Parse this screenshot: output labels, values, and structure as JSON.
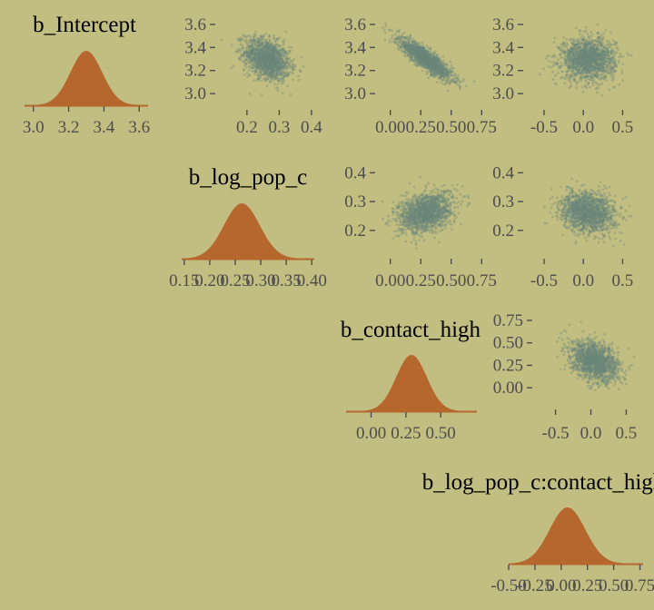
{
  "background": "#c2bd80",
  "colors": {
    "density_fill": "#b5672e",
    "scatter_point": "#6a877c",
    "tick": "#4d4d4d",
    "title": "#000000"
  },
  "chart_data": [
    {
      "type": "area",
      "title": "b_Intercept",
      "xlim": [
        2.95,
        3.65
      ],
      "ticks": [
        "3.0",
        "3.2",
        "3.4",
        "3.6"
      ],
      "tick_values": [
        3.0,
        3.2,
        3.4,
        3.6
      ],
      "mean": 3.3,
      "sd": 0.09,
      "ymin": 0.0
    },
    {
      "type": "area",
      "title": "b_log_pop_c",
      "xlim": [
        0.145,
        0.405
      ],
      "ticks": [
        "0.15",
        "0.20",
        "0.25",
        "0.30",
        "0.35",
        "0.40"
      ],
      "tick_values": [
        0.15,
        0.2,
        0.25,
        0.3,
        0.35,
        0.4
      ],
      "mean": 0.263,
      "sd": 0.035,
      "ymin": 0.0
    },
    {
      "type": "area",
      "title": "b_contact_high",
      "xlim": [
        -0.18,
        0.76
      ],
      "ticks": [
        "0.00",
        "0.25",
        "0.50"
      ],
      "tick_values": [
        0.0,
        0.25,
        0.5
      ],
      "mean": 0.29,
      "sd": 0.11,
      "ymin": 0.0
    },
    {
      "type": "area",
      "title": "b_log_pop_c:contact_high",
      "xlim": [
        -0.5,
        0.78
      ],
      "ticks": [
        "-0.50",
        "-0.25",
        "0.00",
        "0.25",
        "0.50",
        "0.75"
      ],
      "tick_values": [
        -0.5,
        -0.25,
        0.0,
        0.25,
        0.5,
        0.75
      ],
      "mean": 0.06,
      "sd": 0.17,
      "ymin": 0.0
    },
    {
      "type": "scatter",
      "panel": "b_log_pop_c vs b_Intercept",
      "xlim": [
        0.13,
        0.42
      ],
      "ylim": [
        2.93,
        3.67
      ],
      "xticks": [
        "0.2",
        "0.3",
        "0.4"
      ],
      "xtick_values": [
        0.2,
        0.3,
        0.4
      ],
      "yticks": [
        "3.0",
        "3.2",
        "3.4",
        "3.6"
      ],
      "ytick_values": [
        3.0,
        3.2,
        3.4,
        3.6
      ],
      "mean": [
        0.263,
        3.3
      ],
      "sd": [
        0.035,
        0.09
      ],
      "corr": -0.35,
      "n": 1600
    },
    {
      "type": "scatter",
      "panel": "b_contact_high vs b_Intercept",
      "xlim": [
        -0.05,
        0.8
      ],
      "ylim": [
        2.93,
        3.67
      ],
      "xticks": [
        "0.00",
        "0.25",
        "0.50",
        "0.75"
      ],
      "xtick_values": [
        0.0,
        0.25,
        0.5,
        0.75
      ],
      "yticks": [
        "3.0",
        "3.2",
        "3.4",
        "3.6"
      ],
      "ytick_values": [
        3.0,
        3.2,
        3.4,
        3.6
      ],
      "mean": [
        0.29,
        3.3
      ],
      "sd": [
        0.11,
        0.09
      ],
      "corr": -0.88,
      "n": 1600
    },
    {
      "type": "scatter",
      "panel": "b_log_pop_c:contact_high vs b_Intercept",
      "xlim": [
        -0.65,
        0.68
      ],
      "ylim": [
        2.93,
        3.67
      ],
      "xticks": [
        "-0.5",
        "0.0",
        "0.5"
      ],
      "xtick_values": [
        -0.5,
        0.0,
        0.5
      ],
      "yticks": [
        "3.0",
        "3.2",
        "3.4",
        "3.6"
      ],
      "ytick_values": [
        3.0,
        3.2,
        3.4,
        3.6
      ],
      "mean": [
        0.06,
        3.3
      ],
      "sd": [
        0.17,
        0.09
      ],
      "corr": 0.0,
      "n": 1600
    },
    {
      "type": "scatter",
      "panel": "b_contact_high vs b_log_pop_c",
      "xlim": [
        -0.05,
        0.8
      ],
      "ylim": [
        0.13,
        0.42
      ],
      "xticks": [
        "0.00",
        "0.25",
        "0.50",
        "0.75"
      ],
      "xtick_values": [
        0.0,
        0.25,
        0.5,
        0.75
      ],
      "yticks": [
        "0.2",
        "0.3",
        "0.4"
      ],
      "ytick_values": [
        0.2,
        0.3,
        0.4
      ],
      "mean": [
        0.29,
        0.263
      ],
      "sd": [
        0.11,
        0.035
      ],
      "corr": 0.3,
      "n": 1600
    },
    {
      "type": "scatter",
      "panel": "b_log_pop_c:contact_high vs b_log_pop_c",
      "xlim": [
        -0.65,
        0.68
      ],
      "ylim": [
        0.13,
        0.42
      ],
      "xticks": [
        "-0.5",
        "0.0",
        "0.5"
      ],
      "xtick_values": [
        -0.5,
        0.0,
        0.5
      ],
      "yticks": [
        "0.2",
        "0.3",
        "0.4"
      ],
      "ytick_values": [
        0.2,
        0.3,
        0.4
      ],
      "mean": [
        0.06,
        0.263
      ],
      "sd": [
        0.17,
        0.035
      ],
      "corr": -0.15,
      "n": 1600
    },
    {
      "type": "scatter",
      "panel": "b_log_pop_c:contact_high vs b_contact_high",
      "xlim": [
        -0.7,
        0.7
      ],
      "ylim": [
        -0.15,
        0.8
      ],
      "xticks": [
        "-0.5",
        "0.0",
        "0.5"
      ],
      "xtick_values": [
        -0.5,
        0.0,
        0.5
      ],
      "yticks": [
        "0.00",
        "0.25",
        "0.50",
        "0.75"
      ],
      "ytick_values": [
        0.0,
        0.25,
        0.5,
        0.75
      ],
      "mean": [
        0.06,
        0.29
      ],
      "sd": [
        0.17,
        0.11
      ],
      "corr": -0.35,
      "n": 1600
    }
  ]
}
